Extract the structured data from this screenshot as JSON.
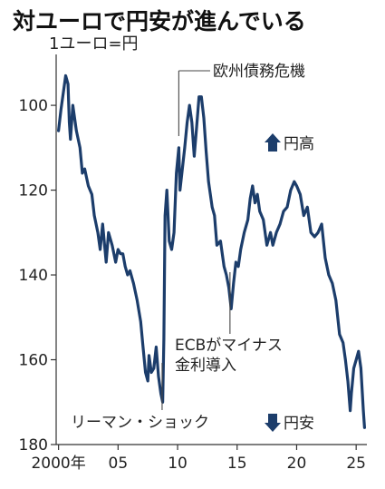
{
  "title": "対ユーロで円安が進んでいる",
  "chart_data": {
    "type": "line",
    "title": "対ユーロで円安が進んでいる",
    "ylabel": "1ユーロ=円",
    "xlabel": "",
    "y_inverted": true,
    "ylim": [
      180,
      88
    ],
    "xlim": [
      1999.8,
      2025.9
    ],
    "x_ticks": [
      {
        "value": 2000,
        "label": "2000年"
      },
      {
        "value": 2005,
        "label": "05"
      },
      {
        "value": 2010,
        "label": "10"
      },
      {
        "value": 2015,
        "label": "15"
      },
      {
        "value": 2020,
        "label": "20"
      },
      {
        "value": 2025,
        "label": "25"
      }
    ],
    "y_ticks": [
      {
        "value": 100,
        "label": "100"
      },
      {
        "value": 120,
        "label": "120"
      },
      {
        "value": 140,
        "label": "140"
      },
      {
        "value": 160,
        "label": "160"
      },
      {
        "value": 180,
        "label": "180"
      }
    ],
    "arrows": {
      "up": "円高",
      "down": "円安"
    },
    "annotations": [
      {
        "text": "欧州債務危機",
        "x": 2010.1
      },
      {
        "text": "ECBがマイナス",
        "text2": "金利導入",
        "x": 2014.4
      },
      {
        "text": "リーマン・ショック",
        "x": 2008.7
      }
    ],
    "series": [
      {
        "color": "#1c3d6b",
        "points": [
          [
            2000.0,
            106
          ],
          [
            2000.2,
            101
          ],
          [
            2000.4,
            97
          ],
          [
            2000.6,
            93
          ],
          [
            2000.8,
            95
          ],
          [
            2000.9,
            104
          ],
          [
            2001.0,
            108
          ],
          [
            2001.2,
            100
          ],
          [
            2001.5,
            106
          ],
          [
            2001.8,
            110
          ],
          [
            2002.0,
            116
          ],
          [
            2002.2,
            115
          ],
          [
            2002.5,
            119
          ],
          [
            2002.8,
            121
          ],
          [
            2003.0,
            126
          ],
          [
            2003.3,
            130
          ],
          [
            2003.5,
            134
          ],
          [
            2003.7,
            128
          ],
          [
            2003.9,
            134
          ],
          [
            2004.0,
            137
          ],
          [
            2004.2,
            130
          ],
          [
            2004.5,
            133
          ],
          [
            2004.8,
            137
          ],
          [
            2005.0,
            134
          ],
          [
            2005.2,
            135
          ],
          [
            2005.4,
            135
          ],
          [
            2005.6,
            138
          ],
          [
            2005.8,
            140
          ],
          [
            2006.0,
            139
          ],
          [
            2006.3,
            142
          ],
          [
            2006.6,
            146
          ],
          [
            2006.9,
            151
          ],
          [
            2007.1,
            157
          ],
          [
            2007.3,
            163
          ],
          [
            2007.5,
            165
          ],
          [
            2007.6,
            159
          ],
          [
            2007.8,
            163
          ],
          [
            2008.0,
            162
          ],
          [
            2008.2,
            157
          ],
          [
            2008.4,
            164
          ],
          [
            2008.6,
            168
          ],
          [
            2008.75,
            170
          ],
          [
            2008.85,
            155
          ],
          [
            2008.95,
            126
          ],
          [
            2009.1,
            120
          ],
          [
            2009.3,
            132
          ],
          [
            2009.5,
            134
          ],
          [
            2009.7,
            130
          ],
          [
            2009.9,
            116
          ],
          [
            2010.1,
            110
          ],
          [
            2010.2,
            120
          ],
          [
            2010.4,
            115
          ],
          [
            2010.6,
            110
          ],
          [
            2010.8,
            104
          ],
          [
            2011.0,
            100
          ],
          [
            2011.2,
            104
          ],
          [
            2011.4,
            112
          ],
          [
            2011.6,
            105
          ],
          [
            2011.8,
            98
          ],
          [
            2012.0,
            98
          ],
          [
            2012.2,
            103
          ],
          [
            2012.4,
            111
          ],
          [
            2012.6,
            118
          ],
          [
            2012.9,
            124
          ],
          [
            2013.1,
            126
          ],
          [
            2013.3,
            133
          ],
          [
            2013.6,
            132
          ],
          [
            2013.9,
            138
          ],
          [
            2014.1,
            140
          ],
          [
            2014.3,
            143
          ],
          [
            2014.5,
            148
          ],
          [
            2014.7,
            142
          ],
          [
            2014.9,
            137
          ],
          [
            2015.1,
            138
          ],
          [
            2015.3,
            134
          ],
          [
            2015.6,
            130
          ],
          [
            2015.9,
            127
          ],
          [
            2016.1,
            122
          ],
          [
            2016.3,
            119
          ],
          [
            2016.5,
            123
          ],
          [
            2016.7,
            121
          ],
          [
            2016.9,
            125
          ],
          [
            2017.2,
            127
          ],
          [
            2017.5,
            133
          ],
          [
            2017.8,
            130
          ],
          [
            2018.0,
            133
          ],
          [
            2018.3,
            130
          ],
          [
            2018.6,
            128
          ],
          [
            2018.9,
            125
          ],
          [
            2019.2,
            124
          ],
          [
            2019.5,
            120
          ],
          [
            2019.8,
            118
          ],
          [
            2020.0,
            119
          ],
          [
            2020.3,
            121
          ],
          [
            2020.6,
            126
          ],
          [
            2020.9,
            124
          ],
          [
            2021.2,
            130
          ],
          [
            2021.5,
            131
          ],
          [
            2021.8,
            130
          ],
          [
            2022.1,
            128
          ],
          [
            2022.4,
            136
          ],
          [
            2022.7,
            140
          ],
          [
            2023.0,
            142
          ],
          [
            2023.3,
            146
          ],
          [
            2023.6,
            154
          ],
          [
            2023.9,
            156
          ],
          [
            2024.1,
            160
          ],
          [
            2024.3,
            165
          ],
          [
            2024.5,
            172
          ],
          [
            2024.6,
            168
          ],
          [
            2024.8,
            162
          ],
          [
            2025.0,
            160
          ],
          [
            2025.2,
            158
          ],
          [
            2025.4,
            162
          ],
          [
            2025.6,
            172
          ],
          [
            2025.7,
            176
          ]
        ]
      }
    ]
  }
}
